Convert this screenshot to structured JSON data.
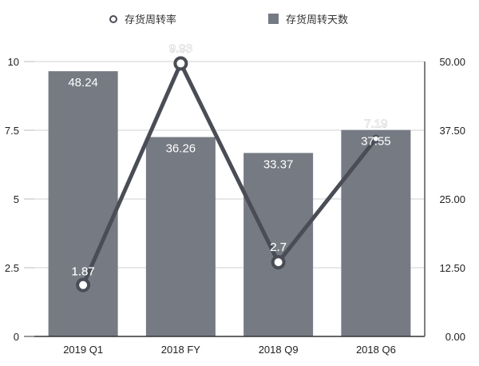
{
  "legend": {
    "line_label": "存货周转率",
    "bar_label": "存货周转天数"
  },
  "colors": {
    "bar": "#767a83",
    "line": "#4a4d55",
    "grid": "#d0d0d0",
    "axis": "#555555"
  },
  "axes": {
    "left_ticks": [
      "0",
      "2.5",
      "5",
      "7.5",
      "10"
    ],
    "right_ticks": [
      "0.00",
      "12.50",
      "25.00",
      "37.50",
      "50.00"
    ],
    "x_labels": [
      "2019 Q1",
      "2018 FY",
      "2018 Q9",
      "2018 Q6"
    ]
  },
  "bars": {
    "labels": [
      "48.24",
      "36.26",
      "33.37",
      "37.55"
    ]
  },
  "points": {
    "labels": [
      "1.87",
      "9.93",
      "2.7",
      "7.19"
    ]
  },
  "chart_data": {
    "type": "bar",
    "title": "",
    "categories": [
      "2019 Q1",
      "2018 FY",
      "2018 Q9",
      "2018 Q6"
    ],
    "series": [
      {
        "name": "存货周转天数",
        "type": "bar",
        "axis": "right",
        "values": [
          48.24,
          36.26,
          33.37,
          37.55
        ]
      },
      {
        "name": "存货周转率",
        "type": "line",
        "axis": "left",
        "values": [
          1.87,
          9.93,
          2.7,
          7.19
        ]
      }
    ],
    "xlabel": "",
    "ylabel": "",
    "ylim": [
      0,
      10
    ],
    "y2lim": [
      0,
      50
    ],
    "yticks": [
      0,
      2.5,
      5,
      7.5,
      10
    ],
    "y2ticks": [
      0,
      12.5,
      25,
      37.5,
      50
    ],
    "grid": true,
    "legend_position": "top"
  }
}
